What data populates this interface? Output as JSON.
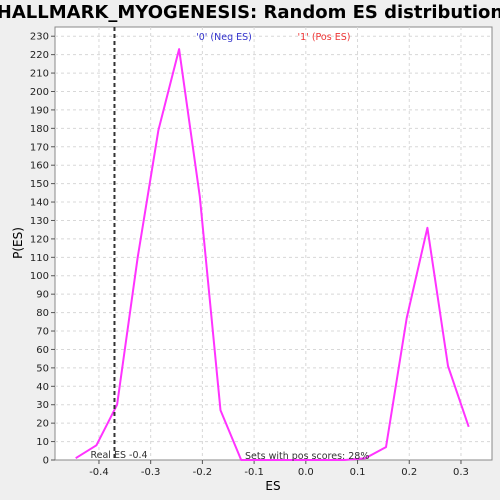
{
  "chart_data": {
    "type": "line",
    "title": "HALLMARK_MYOGENESIS: Random ES distribution",
    "xlabel": "ES",
    "ylabel": "P(ES)",
    "xlim": [
      -0.485,
      0.36
    ],
    "ylim": [
      0,
      235
    ],
    "x_ticks": [
      -0.4,
      -0.3,
      -0.2,
      -0.1,
      0.0,
      0.1,
      0.2,
      0.3
    ],
    "x_tick_labels": [
      "-0.4",
      "-0.3",
      "-0.2",
      "-0.1",
      "0.0",
      "0.1",
      "0.2",
      "0.3"
    ],
    "y_ticks": [
      0,
      10,
      20,
      30,
      40,
      50,
      60,
      70,
      80,
      90,
      100,
      110,
      120,
      130,
      140,
      150,
      160,
      170,
      180,
      190,
      200,
      210,
      220,
      230
    ],
    "grid": true,
    "series": [
      {
        "color": "#ff33ff",
        "x": [
          -0.445,
          -0.405,
          -0.365,
          -0.325,
          -0.285,
          -0.245,
          -0.205,
          -0.165,
          -0.125,
          -0.085,
          -0.045,
          -0.005,
          0.035,
          0.075,
          0.115,
          0.155,
          0.195,
          0.235,
          0.275,
          0.315
        ],
        "y": [
          1,
          8,
          30,
          110,
          179,
          223,
          143,
          27,
          0,
          0,
          0,
          0,
          0,
          0,
          1,
          7,
          77,
          126,
          51,
          18
        ]
      }
    ],
    "real_es": {
      "x": -0.37,
      "label": "Real ES -0.4"
    },
    "legend": [
      {
        "label": "'0' (Neg ES)",
        "color": "#3333cc"
      },
      {
        "label": "'1' (Pos ES)",
        "color": "#ee3333"
      }
    ],
    "annotation": "Sets with pos scores: 28%"
  }
}
